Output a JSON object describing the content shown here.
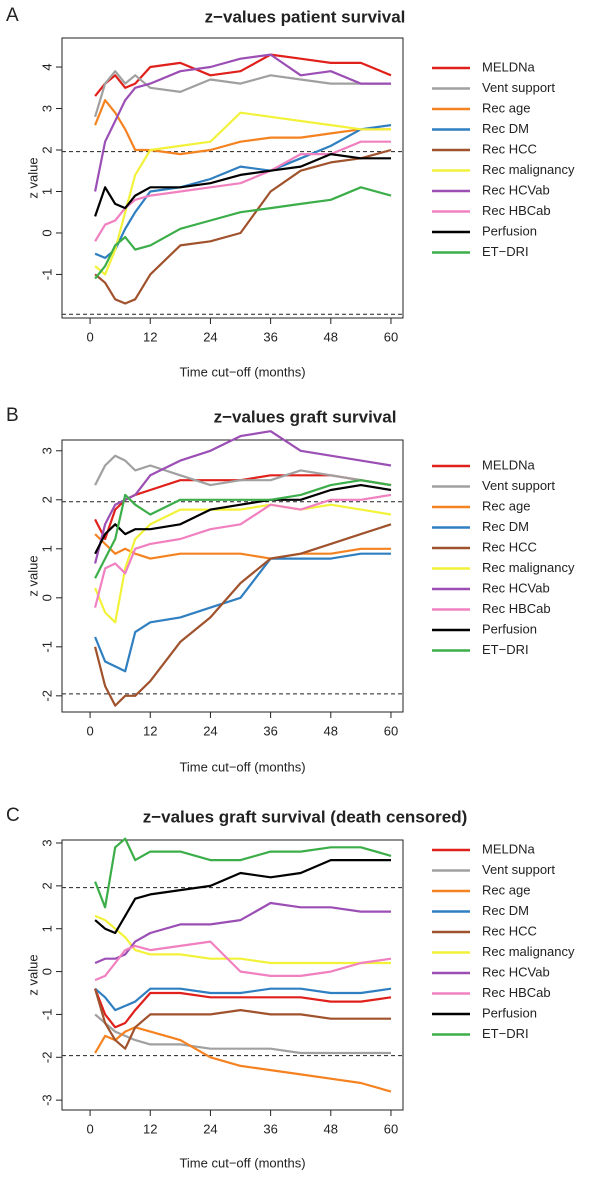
{
  "chart_data": [
    {
      "type": "line",
      "panel_label": "A",
      "title": "z−values patient survival",
      "xlabel": "Time cut−off (months)",
      "ylabel": "z value",
      "x": [
        1,
        3,
        5,
        7,
        9,
        12,
        18,
        24,
        30,
        36,
        42,
        48,
        54,
        60
      ],
      "xlim": [
        -5.6,
        62.4
      ],
      "xticks": [
        0,
        12,
        24,
        36,
        48,
        60
      ],
      "ylim": [
        -2.05,
        4.7
      ],
      "yticks": [
        -1,
        0,
        1,
        2,
        3,
        4
      ],
      "hlines": [
        1.96,
        -1.96
      ],
      "series": [
        {
          "name": "MELDNa",
          "color": "#e0201b",
          "values": [
            3.3,
            3.6,
            3.8,
            3.5,
            3.6,
            4.0,
            4.1,
            3.8,
            3.9,
            4.3,
            4.2,
            4.1,
            4.1,
            3.8
          ]
        },
        {
          "name": "Vent support",
          "color": "#a0a0a0",
          "values": [
            2.8,
            3.6,
            3.9,
            3.6,
            3.8,
            3.5,
            3.4,
            3.7,
            3.6,
            3.8,
            3.7,
            3.6,
            3.6,
            3.6
          ]
        },
        {
          "name": "Rec age",
          "color": "#f58220",
          "values": [
            2.6,
            3.2,
            2.9,
            2.5,
            2.0,
            2.0,
            1.9,
            2.0,
            2.2,
            2.3,
            2.3,
            2.4,
            2.5,
            2.5
          ]
        },
        {
          "name": "Rec DM",
          "color": "#2f7fc1",
          "values": [
            -0.5,
            -0.6,
            -0.4,
            0.1,
            0.5,
            1.0,
            1.1,
            1.3,
            1.6,
            1.5,
            1.8,
            2.1,
            2.5,
            2.6
          ]
        },
        {
          "name": "Rec HCC",
          "color": "#a0522d",
          "values": [
            -1.0,
            -1.2,
            -1.6,
            -1.7,
            -1.6,
            -1.0,
            -0.3,
            -0.2,
            0.0,
            1.0,
            1.5,
            1.7,
            1.8,
            2.0
          ]
        },
        {
          "name": "Rec malignancy",
          "color": "#f2f23a",
          "values": [
            -0.8,
            -1.0,
            -0.4,
            0.5,
            1.4,
            2.0,
            2.1,
            2.2,
            2.9,
            2.8,
            2.7,
            2.6,
            2.5,
            2.5
          ]
        },
        {
          "name": "Rec HCVab",
          "color": "#9b4fb5",
          "values": [
            1.0,
            2.2,
            2.7,
            3.2,
            3.5,
            3.6,
            3.9,
            4.0,
            4.2,
            4.3,
            3.8,
            3.9,
            3.6,
            3.6
          ]
        },
        {
          "name": "Rec HBCab",
          "color": "#f080c0",
          "values": [
            -0.2,
            0.2,
            0.3,
            0.6,
            0.8,
            0.9,
            1.0,
            1.1,
            1.2,
            1.5,
            1.9,
            1.9,
            2.2,
            2.2
          ]
        },
        {
          "name": "Perfusion",
          "color": "#000000",
          "values": [
            0.4,
            1.1,
            0.7,
            0.6,
            0.9,
            1.1,
            1.1,
            1.2,
            1.4,
            1.5,
            1.6,
            1.9,
            1.8,
            1.8
          ]
        },
        {
          "name": "ET−DRI",
          "color": "#3cae49",
          "values": [
            -1.1,
            -0.8,
            -0.3,
            -0.1,
            -0.4,
            -0.3,
            0.1,
            0.3,
            0.5,
            0.6,
            0.7,
            0.8,
            1.1,
            0.9
          ]
        }
      ]
    },
    {
      "type": "line",
      "panel_label": "B",
      "title": "z−values graft survival",
      "xlabel": "Time cut−off (months)",
      "ylabel": "z value",
      "x": [
        1,
        3,
        5,
        7,
        9,
        12,
        18,
        24,
        30,
        36,
        42,
        48,
        54,
        60
      ],
      "xlim": [
        -5.6,
        62.4
      ],
      "xticks": [
        0,
        12,
        24,
        36,
        48,
        60
      ],
      "ylim": [
        -2.33,
        3.22
      ],
      "yticks": [
        -2,
        -1,
        0,
        1,
        2,
        3
      ],
      "hlines": [
        1.96,
        -1.96
      ],
      "series": [
        {
          "name": "MELDNa",
          "color": "#e0201b",
          "values": [
            1.6,
            1.2,
            1.8,
            2.0,
            2.1,
            2.2,
            2.4,
            2.4,
            2.4,
            2.5,
            2.5,
            2.5,
            2.4,
            2.3
          ]
        },
        {
          "name": "Vent support",
          "color": "#a0a0a0",
          "values": [
            2.3,
            2.7,
            2.9,
            2.8,
            2.6,
            2.7,
            2.5,
            2.3,
            2.4,
            2.4,
            2.6,
            2.5,
            2.4,
            2.3
          ]
        },
        {
          "name": "Rec age",
          "color": "#f58220",
          "values": [
            1.3,
            1.1,
            0.9,
            1.0,
            0.9,
            0.8,
            0.9,
            0.9,
            0.9,
            0.8,
            0.9,
            0.9,
            1.0,
            1.0
          ]
        },
        {
          "name": "Rec DM",
          "color": "#2f7fc1",
          "values": [
            -0.8,
            -1.3,
            -1.4,
            -1.5,
            -0.7,
            -0.5,
            -0.4,
            -0.2,
            0.0,
            0.8,
            0.8,
            0.8,
            0.9,
            0.9
          ]
        },
        {
          "name": "Rec HCC",
          "color": "#a0522d",
          "values": [
            -1.0,
            -1.8,
            -2.2,
            -2.0,
            -2.0,
            -1.7,
            -0.9,
            -0.4,
            0.3,
            0.8,
            0.9,
            1.1,
            1.3,
            1.5
          ]
        },
        {
          "name": "Rec malignancy",
          "color": "#f2f23a",
          "values": [
            0.2,
            -0.3,
            -0.5,
            0.6,
            1.2,
            1.5,
            1.8,
            1.8,
            1.8,
            1.9,
            1.8,
            1.9,
            1.8,
            1.7
          ]
        },
        {
          "name": "Rec HCVab",
          "color": "#9b4fb5",
          "values": [
            0.7,
            1.5,
            1.9,
            2.0,
            2.1,
            2.5,
            2.8,
            3.0,
            3.3,
            3.4,
            3.0,
            2.9,
            2.8,
            2.7
          ]
        },
        {
          "name": "Rec HBCab",
          "color": "#f080c0",
          "values": [
            -0.2,
            0.6,
            0.7,
            0.5,
            1.0,
            1.1,
            1.2,
            1.4,
            1.5,
            1.9,
            1.8,
            2.0,
            2.0,
            2.1
          ]
        },
        {
          "name": "Perfusion",
          "color": "#000000",
          "values": [
            0.9,
            1.3,
            1.5,
            1.3,
            1.4,
            1.4,
            1.5,
            1.8,
            1.9,
            2.0,
            2.0,
            2.2,
            2.3,
            2.2
          ]
        },
        {
          "name": "ET−DRI",
          "color": "#3cae49",
          "values": [
            0.4,
            0.8,
            1.2,
            2.1,
            1.9,
            1.7,
            2.0,
            2.0,
            2.0,
            2.0,
            2.1,
            2.3,
            2.4,
            2.3
          ]
        }
      ]
    },
    {
      "type": "line",
      "panel_label": "C",
      "title": "z−values graft survival (death censored)",
      "xlabel": "Time cut−off (months)",
      "ylabel": "z value",
      "x": [
        1,
        3,
        5,
        7,
        9,
        12,
        18,
        24,
        30,
        36,
        42,
        48,
        54,
        60
      ],
      "xlim": [
        -5.6,
        62.4
      ],
      "xticks": [
        0,
        12,
        24,
        36,
        48,
        60
      ],
      "ylim": [
        -3.23,
        3.07
      ],
      "yticks": [
        -3,
        -2,
        -1,
        0,
        1,
        2,
        3
      ],
      "hlines": [
        1.96,
        -1.96
      ],
      "series": [
        {
          "name": "MELDNa",
          "color": "#e0201b",
          "values": [
            -0.4,
            -1.0,
            -1.3,
            -1.2,
            -0.9,
            -0.5,
            -0.5,
            -0.6,
            -0.6,
            -0.6,
            -0.6,
            -0.7,
            -0.7,
            -0.6
          ]
        },
        {
          "name": "Vent support",
          "color": "#a0a0a0",
          "values": [
            -1.0,
            -1.2,
            -1.4,
            -1.5,
            -1.6,
            -1.7,
            -1.7,
            -1.8,
            -1.8,
            -1.8,
            -1.9,
            -1.9,
            -1.9,
            -1.9
          ]
        },
        {
          "name": "Rec age",
          "color": "#f58220",
          "values": [
            -1.9,
            -1.5,
            -1.6,
            -1.4,
            -1.3,
            -1.4,
            -1.6,
            -2.0,
            -2.2,
            -2.3,
            -2.4,
            -2.5,
            -2.6,
            -2.8
          ]
        },
        {
          "name": "Rec DM",
          "color": "#2f7fc1",
          "values": [
            -0.4,
            -0.6,
            -0.9,
            -0.8,
            -0.7,
            -0.4,
            -0.4,
            -0.5,
            -0.5,
            -0.4,
            -0.4,
            -0.5,
            -0.5,
            -0.4
          ]
        },
        {
          "name": "Rec HCC",
          "color": "#a0522d",
          "values": [
            -0.4,
            -1.2,
            -1.6,
            -1.8,
            -1.3,
            -1.0,
            -1.0,
            -1.0,
            -0.9,
            -1.0,
            -1.0,
            -1.1,
            -1.1,
            -1.1
          ]
        },
        {
          "name": "Rec malignancy",
          "color": "#f2f23a",
          "values": [
            1.3,
            1.2,
            1.0,
            0.8,
            0.5,
            0.4,
            0.4,
            0.3,
            0.3,
            0.2,
            0.2,
            0.2,
            0.2,
            0.2
          ]
        },
        {
          "name": "Rec HCVab",
          "color": "#9b4fb5",
          "values": [
            0.2,
            0.3,
            0.3,
            0.4,
            0.7,
            0.9,
            1.1,
            1.1,
            1.2,
            1.6,
            1.5,
            1.5,
            1.4,
            1.4
          ]
        },
        {
          "name": "Rec HBCab",
          "color": "#f080c0",
          "values": [
            -0.2,
            -0.1,
            0.2,
            0.5,
            0.6,
            0.5,
            0.6,
            0.7,
            0.0,
            -0.1,
            -0.1,
            0.0,
            0.2,
            0.3
          ]
        },
        {
          "name": "Perfusion",
          "color": "#000000",
          "values": [
            1.2,
            1.0,
            0.9,
            1.3,
            1.7,
            1.8,
            1.9,
            2.0,
            2.3,
            2.2,
            2.3,
            2.6,
            2.6,
            2.6
          ]
        },
        {
          "name": "ET−DRI",
          "color": "#3cae49",
          "values": [
            2.1,
            1.5,
            2.9,
            3.1,
            2.6,
            2.8,
            2.8,
            2.6,
            2.6,
            2.8,
            2.8,
            2.9,
            2.9,
            2.7
          ]
        }
      ]
    }
  ]
}
